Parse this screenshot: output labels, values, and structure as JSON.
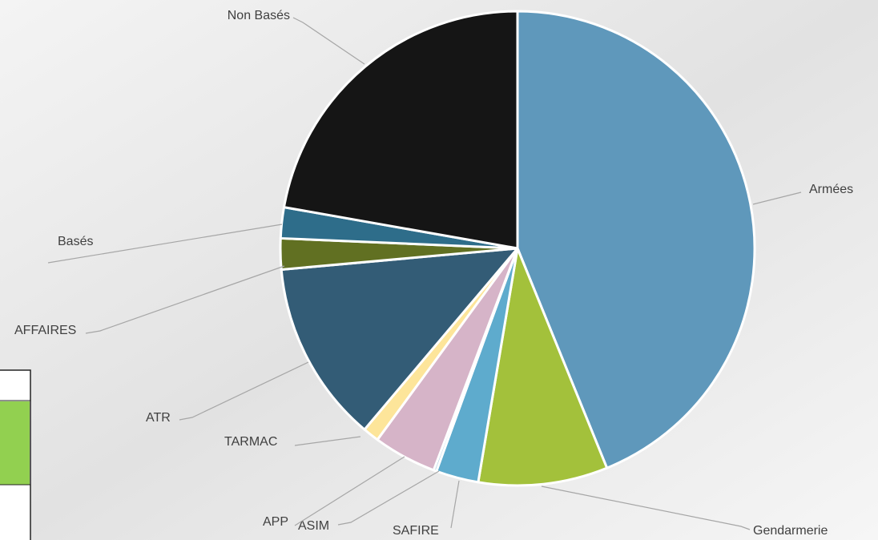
{
  "chart_data": {
    "type": "pie",
    "categories": [
      "Armées",
      "Gendarmerie",
      "SAFIRE",
      "ASIM",
      "APP",
      "TARMAC",
      "ATR",
      "AFFAIRES",
      "Basés",
      "Non Basés"
    ],
    "values": [
      43.8,
      8.8,
      2.9,
      0.2,
      4.3,
      1.1,
      12.4,
      2.1,
      2.1,
      22.2
    ],
    "colors": [
      "#5f98bb",
      "#a3c13b",
      "#5eabcd",
      "#9fc6dc",
      "#d6b4c8",
      "#fde59a",
      "#335c76",
      "#617022",
      "#2e6d8a",
      "#151515"
    ]
  }
}
